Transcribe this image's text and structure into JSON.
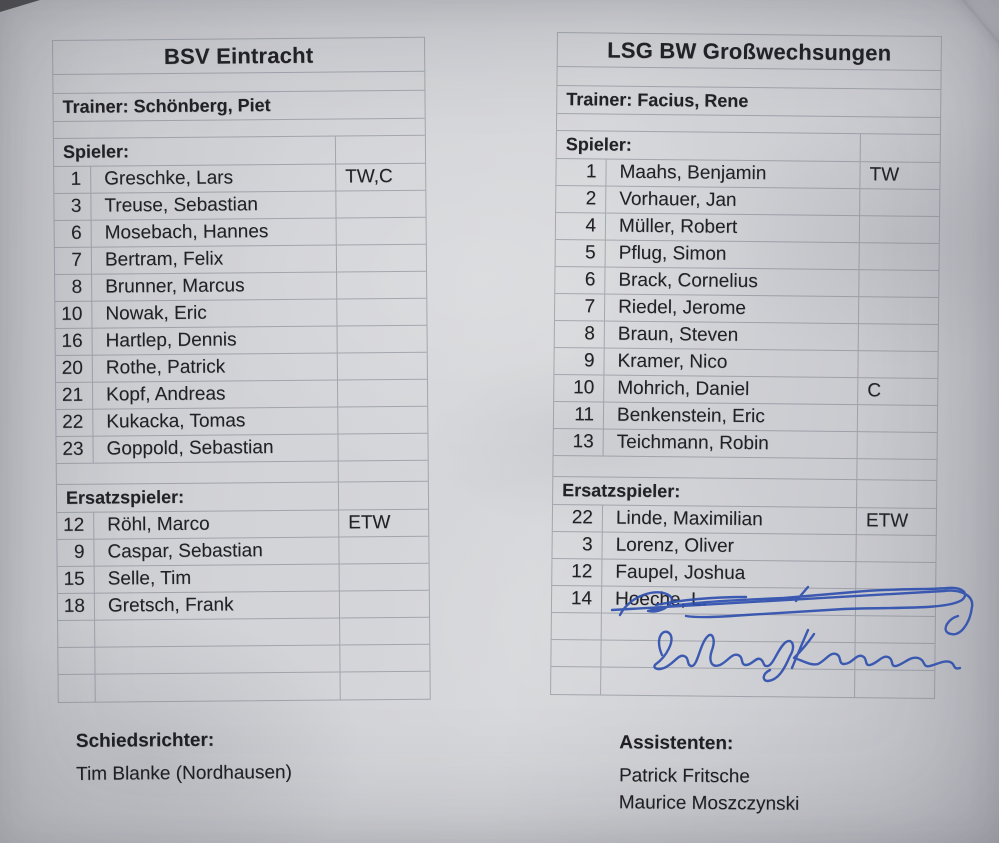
{
  "teams": [
    {
      "title": "BSV Eintracht",
      "trainer": "Trainer: Schönberg, Piet",
      "players_label": "Spieler:",
      "players": [
        {
          "no": "1",
          "name": "Greschke, Lars",
          "pos": "TW,C"
        },
        {
          "no": "3",
          "name": "Treuse, Sebastian",
          "pos": ""
        },
        {
          "no": "6",
          "name": "Mosebach, Hannes",
          "pos": ""
        },
        {
          "no": "7",
          "name": "Bertram, Felix",
          "pos": ""
        },
        {
          "no": "8",
          "name": "Brunner, Marcus",
          "pos": ""
        },
        {
          "no": "10",
          "name": "Nowak, Eric",
          "pos": ""
        },
        {
          "no": "16",
          "name": "Hartlep, Dennis",
          "pos": ""
        },
        {
          "no": "20",
          "name": "Rothe, Patrick",
          "pos": ""
        },
        {
          "no": "21",
          "name": "Kopf, Andreas",
          "pos": ""
        },
        {
          "no": "22",
          "name": "Kukacka, Tomas",
          "pos": ""
        },
        {
          "no": "23",
          "name": "Goppold, Sebastian",
          "pos": ""
        }
      ],
      "substitutes_label": "Ersatzspieler:",
      "substitutes": [
        {
          "no": "12",
          "name": "Röhl, Marco",
          "pos": "ETW"
        },
        {
          "no": "9",
          "name": "Caspar, Sebastian",
          "pos": ""
        },
        {
          "no": "15",
          "name": "Selle, Tim",
          "pos": ""
        },
        {
          "no": "18",
          "name": "Gretsch, Frank",
          "pos": ""
        }
      ],
      "empty_rows": 3,
      "footer": {
        "heading": "Schiedsrichter:",
        "lines": [
          "Tim Blanke (Nordhausen)"
        ]
      }
    },
    {
      "title": "LSG BW Großwechsungen",
      "trainer": "Trainer: Facius, Rene",
      "players_label": "Spieler:",
      "players": [
        {
          "no": "1",
          "name": "Maahs, Benjamin",
          "pos": "TW"
        },
        {
          "no": "2",
          "name": "Vorhauer, Jan",
          "pos": ""
        },
        {
          "no": "4",
          "name": "Müller, Robert",
          "pos": ""
        },
        {
          "no": "5",
          "name": "Pflug, Simon",
          "pos": ""
        },
        {
          "no": "6",
          "name": "Brack, Cornelius",
          "pos": ""
        },
        {
          "no": "7",
          "name": "Riedel, Jerome",
          "pos": ""
        },
        {
          "no": "8",
          "name": "Braun, Steven",
          "pos": ""
        },
        {
          "no": "9",
          "name": "Kramer, Nico",
          "pos": ""
        },
        {
          "no": "10",
          "name": "Mohrich, Daniel",
          "pos": "C"
        },
        {
          "no": "11",
          "name": "Benkenstein, Eric",
          "pos": ""
        },
        {
          "no": "13",
          "name": "Teichmann, Robin",
          "pos": ""
        }
      ],
      "substitutes_label": "Ersatzspieler:",
      "substitutes": [
        {
          "no": "22",
          "name": "Linde, Maximilian",
          "pos": "ETW"
        },
        {
          "no": "3",
          "name": "Lorenz, Oliver",
          "pos": ""
        },
        {
          "no": "12",
          "name": "Faupel, Joshua",
          "pos": ""
        },
        {
          "no": "14",
          "name": "Hoeche, L.",
          "pos": ""
        }
      ],
      "empty_rows": 3,
      "footer": {
        "heading": "Assistenten:",
        "lines": [
          "Patrick Fritsche",
          "Maurice Moszczynski"
        ]
      }
    }
  ],
  "handwriting": {
    "ink_color": "#2f4fae",
    "line1": "illegible signature, struck through",
    "line2": "Ludwig Klemens"
  },
  "colors": {
    "paper": "#d2d3d7",
    "ink": "#222226",
    "grid": "#7a7d88"
  }
}
